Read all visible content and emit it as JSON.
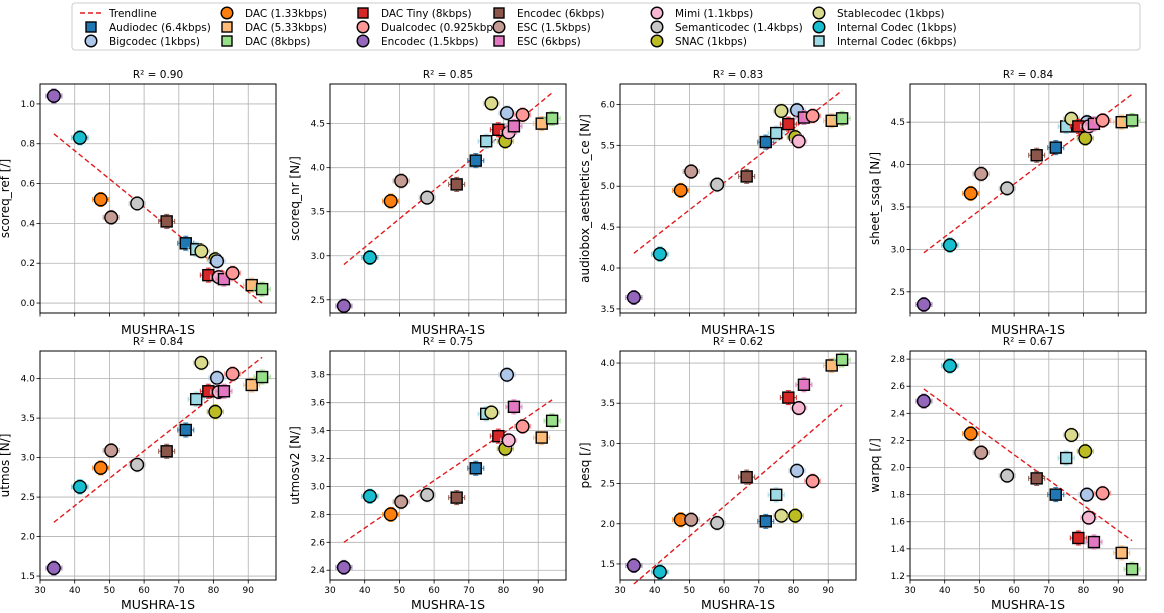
{
  "figure": {
    "legend_position": "top-center",
    "legend_columns": 7
  },
  "legend": [
    {
      "kind": "trendline",
      "label": "Trendline"
    },
    {
      "codec": "audiodec",
      "label": "Audiodec (6.4kbps)"
    },
    {
      "codec": "bigcodec",
      "label": "Bigcodec (1kbps)"
    },
    {
      "codec": "dac133",
      "label": "DAC (1.33kbps)"
    },
    {
      "codec": "dac533",
      "label": "DAC (5.33kbps)"
    },
    {
      "codec": "dac8",
      "label": "DAC (8kbps)"
    },
    {
      "codec": "dactiny",
      "label": "DAC Tiny (8kbps)"
    },
    {
      "codec": "dualcodec",
      "label": "Dualcodec (0.925kbps)"
    },
    {
      "codec": "encodec15",
      "label": "Encodec (1.5kbps)"
    },
    {
      "codec": "encodec6",
      "label": "Encodec (6kbps)"
    },
    {
      "codec": "esc15",
      "label": "ESC (1.5kbps)"
    },
    {
      "codec": "esc6",
      "label": "ESC (6kbps)"
    },
    {
      "codec": "mimi",
      "label": "Mimi (1.1kbps)"
    },
    {
      "codec": "semanticodec",
      "label": "Semanticodec (1.4kbps)"
    },
    {
      "codec": "snac",
      "label": "SNAC (1kbps)"
    },
    {
      "codec": "stablecodec",
      "label": "Stablecodec (1kbps)"
    },
    {
      "codec": "int1",
      "label": "Internal Codec (1kbps)"
    },
    {
      "codec": "int6",
      "label": "Internal Codec (6kbps)"
    }
  ],
  "codecs": {
    "audiodec": {
      "color": "#1f77b4",
      "marker": "square",
      "mushra": 72
    },
    "bigcodec": {
      "color": "#aec7e8",
      "marker": "circle",
      "mushra": 81
    },
    "dac133": {
      "color": "#ff7f0e",
      "marker": "circle",
      "mushra": 47.5
    },
    "dac533": {
      "color": "#ffbb78",
      "marker": "square",
      "mushra": 91
    },
    "dac8": {
      "color": "#98df8a",
      "marker": "square",
      "mushra": 94
    },
    "dactiny": {
      "color": "#d62728",
      "marker": "square",
      "mushra": 78.5
    },
    "dualcodec": {
      "color": "#ff9896",
      "marker": "circle",
      "mushra": 85.5
    },
    "encodec15": {
      "color": "#9467bd",
      "marker": "circle",
      "mushra": 34
    },
    "encodec6": {
      "color": "#8c564b",
      "marker": "square",
      "mushra": 66.5
    },
    "esc15": {
      "color": "#c49c94",
      "marker": "circle",
      "mushra": 50.5
    },
    "esc6": {
      "color": "#e377c2",
      "marker": "square",
      "mushra": 83
    },
    "mimi": {
      "color": "#f7b6d2",
      "marker": "circle",
      "mushra": 81.5
    },
    "semanticodec": {
      "color": "#c7c7c7",
      "marker": "circle",
      "mushra": 58
    },
    "snac": {
      "color": "#bcbd22",
      "marker": "circle",
      "mushra": 80.5
    },
    "stablecodec": {
      "color": "#dbdb8d",
      "marker": "circle",
      "mushra": 76.5
    },
    "int1": {
      "color": "#17becf",
      "marker": "circle",
      "mushra": 41.5
    },
    "int6": {
      "color": "#9edae5",
      "marker": "square",
      "mushra": 75
    }
  },
  "chart_data": [
    {
      "type": "scatter",
      "title": "R² = 0.90",
      "xlabel": "MUSHRA-1S",
      "ylabel": "scoreq_ref [/]",
      "xlim": [
        30,
        98
      ],
      "ylim": [
        -0.05,
        1.1
      ],
      "xticks": [
        30,
        40,
        50,
        60,
        70,
        80,
        90
      ],
      "xticklabels_shown": false,
      "yticks": [
        0.0,
        0.2,
        0.4,
        0.6,
        0.8,
        1.0
      ],
      "trend": [
        [
          34,
          0.85
        ],
        [
          94,
          0.0
        ]
      ],
      "values": {
        "encodec15": 1.04,
        "int1": 0.83,
        "dac133": 0.52,
        "esc15": 0.43,
        "semanticodec": 0.5,
        "encodec6": 0.41,
        "audiodec": 0.3,
        "int6": 0.27,
        "stablecodec": 0.26,
        "snac": 0.22,
        "bigcodec": 0.21,
        "dactiny": 0.14,
        "mimi": 0.13,
        "esc6": 0.12,
        "dualcodec": 0.15,
        "dac533": 0.09,
        "dac8": 0.07
      }
    },
    {
      "type": "scatter",
      "title": "R² = 0.85",
      "xlabel": "MUSHRA-1S",
      "ylabel": "scoreq_nr [N/]",
      "xlim": [
        30,
        98
      ],
      "ylim": [
        2.35,
        4.95
      ],
      "xticks": [
        30,
        40,
        50,
        60,
        70,
        80,
        90
      ],
      "xticklabels_shown": false,
      "yticks": [
        2.5,
        3.0,
        3.5,
        4.0,
        4.5
      ],
      "trend": [
        [
          34,
          2.9
        ],
        [
          94,
          4.85
        ]
      ],
      "values": {
        "encodec15": 2.43,
        "int1": 2.98,
        "dac133": 3.62,
        "esc15": 3.85,
        "semanticodec": 3.66,
        "encodec6": 3.81,
        "audiodec": 4.08,
        "int6": 4.3,
        "stablecodec": 4.73,
        "snac": 4.3,
        "bigcodec": 4.62,
        "dactiny": 4.43,
        "mimi": 4.4,
        "esc6": 4.47,
        "dualcodec": 4.6,
        "dac533": 4.5,
        "dac8": 4.56
      }
    },
    {
      "type": "scatter",
      "title": "R² = 0.83",
      "xlabel": "MUSHRA-1S",
      "ylabel": "audiobox_aesthetics_ce [N/]",
      "xlim": [
        30,
        98
      ],
      "ylim": [
        3.45,
        6.25
      ],
      "xticks": [
        30,
        40,
        50,
        60,
        70,
        80,
        90
      ],
      "xticklabels_shown": false,
      "yticks": [
        3.5,
        4.0,
        4.5,
        5.0,
        5.5,
        6.0
      ],
      "trend": [
        [
          34,
          4.18
        ],
        [
          94,
          6.17
        ]
      ],
      "values": {
        "encodec15": 3.64,
        "int1": 4.17,
        "dac133": 4.95,
        "esc15": 5.18,
        "semanticodec": 5.02,
        "encodec6": 5.12,
        "audiodec": 5.54,
        "int6": 5.65,
        "stablecodec": 5.92,
        "snac": 5.6,
        "bigcodec": 5.93,
        "dactiny": 5.76,
        "mimi": 5.55,
        "esc6": 5.84,
        "dualcodec": 5.86,
        "dac533": 5.8,
        "dac8": 5.83
      }
    },
    {
      "type": "scatter",
      "title": "R² = 0.84",
      "xlabel": "MUSHRA-1S",
      "ylabel": "sheet_ssqa [N/]",
      "xlim": [
        30,
        98
      ],
      "ylim": [
        2.25,
        4.95
      ],
      "xticks": [
        30,
        40,
        50,
        60,
        70,
        80,
        90
      ],
      "xticklabels_shown": false,
      "yticks": [
        2.5,
        3.0,
        3.5,
        4.0,
        4.5
      ],
      "trend": [
        [
          34,
          2.96
        ],
        [
          94,
          4.83
        ]
      ],
      "values": {
        "encodec15": 2.35,
        "int1": 3.05,
        "dac133": 3.66,
        "esc15": 3.89,
        "semanticodec": 3.72,
        "encodec6": 4.11,
        "audiodec": 4.2,
        "int6": 4.45,
        "stablecodec": 4.54,
        "snac": 4.31,
        "bigcodec": 4.5,
        "dactiny": 4.45,
        "mimi": 4.45,
        "esc6": 4.48,
        "dualcodec": 4.52,
        "dac533": 4.5,
        "dac8": 4.52
      }
    },
    {
      "type": "scatter",
      "title": "R² = 0.84",
      "xlabel": "MUSHRA-1S",
      "ylabel": "utmos [N/]",
      "xlim": [
        30,
        98
      ],
      "ylim": [
        1.45,
        4.35
      ],
      "xticks": [
        30,
        40,
        50,
        60,
        70,
        80,
        90
      ],
      "xticklabels_shown": true,
      "yticks": [
        1.5,
        2.0,
        2.5,
        3.0,
        3.5,
        4.0
      ],
      "trend": [
        [
          34,
          2.18
        ],
        [
          94,
          4.27
        ]
      ],
      "values": {
        "encodec15": 1.6,
        "int1": 2.63,
        "dac133": 2.87,
        "esc15": 3.09,
        "semanticodec": 2.91,
        "encodec6": 3.08,
        "audiodec": 3.35,
        "int6": 3.74,
        "stablecodec": 4.2,
        "snac": 3.58,
        "bigcodec": 4.01,
        "dactiny": 3.84,
        "mimi": 3.83,
        "esc6": 3.84,
        "dualcodec": 4.06,
        "dac533": 3.92,
        "dac8": 4.02
      }
    },
    {
      "type": "scatter",
      "title": "R² = 0.75",
      "xlabel": "MUSHRA-1S",
      "ylabel": "utmosv2 [N/]",
      "xlim": [
        30,
        98
      ],
      "ylim": [
        2.33,
        3.97
      ],
      "xticks": [
        30,
        40,
        50,
        60,
        70,
        80,
        90
      ],
      "xticklabels_shown": true,
      "yticks": [
        2.4,
        2.6,
        2.8,
        3.0,
        3.2,
        3.4,
        3.6,
        3.8
      ],
      "trend": [
        [
          34,
          2.6
        ],
        [
          94,
          3.62
        ]
      ],
      "values": {
        "encodec15": 2.42,
        "int1": 2.93,
        "dac133": 2.8,
        "esc15": 2.89,
        "semanticodec": 2.94,
        "encodec6": 2.92,
        "audiodec": 3.13,
        "int6": 3.52,
        "stablecodec": 3.53,
        "snac": 3.27,
        "bigcodec": 3.8,
        "dactiny": 3.36,
        "mimi": 3.33,
        "esc6": 3.57,
        "dualcodec": 3.43,
        "dac533": 3.35,
        "dac8": 3.47
      }
    },
    {
      "type": "scatter",
      "title": "R² = 0.62",
      "xlabel": "MUSHRA-1S",
      "ylabel": "pesq [/]",
      "xlim": [
        30,
        98
      ],
      "ylim": [
        1.3,
        4.15
      ],
      "xticks": [
        30,
        40,
        50,
        60,
        70,
        80,
        90
      ],
      "xticklabels_shown": true,
      "yticks": [
        1.5,
        2.0,
        2.5,
        3.0,
        3.5,
        4.0
      ],
      "trend": [
        [
          34,
          1.25
        ],
        [
          94,
          3.48
        ]
      ],
      "values": {
        "encodec15": 1.48,
        "int1": 1.4,
        "dac133": 2.05,
        "esc15": 2.05,
        "semanticodec": 2.01,
        "encodec6": 2.58,
        "audiodec": 2.03,
        "int6": 2.36,
        "stablecodec": 2.1,
        "snac": 2.1,
        "bigcodec": 2.66,
        "dactiny": 3.57,
        "mimi": 3.44,
        "esc6": 3.73,
        "dualcodec": 2.53,
        "dac533": 3.97,
        "dac8": 4.04
      }
    },
    {
      "type": "scatter",
      "title": "R² = 0.67",
      "xlabel": "MUSHRA-1S",
      "ylabel": "warpq [/]",
      "xlim": [
        30,
        98
      ],
      "ylim": [
        1.17,
        2.86
      ],
      "xticks": [
        30,
        40,
        50,
        60,
        70,
        80,
        90
      ],
      "xticklabels_shown": true,
      "yticks": [
        1.2,
        1.4,
        1.6,
        1.8,
        2.0,
        2.2,
        2.4,
        2.6,
        2.8
      ],
      "trend": [
        [
          34,
          2.58
        ],
        [
          94,
          1.46
        ]
      ],
      "values": {
        "encodec15": 2.49,
        "int1": 2.75,
        "dac133": 2.25,
        "esc15": 2.11,
        "semanticodec": 1.94,
        "encodec6": 1.92,
        "audiodec": 1.8,
        "int6": 2.07,
        "stablecodec": 2.24,
        "snac": 2.12,
        "bigcodec": 1.8,
        "dactiny": 1.48,
        "mimi": 1.63,
        "esc6": 1.45,
        "dualcodec": 1.81,
        "dac533": 1.37,
        "dac8": 1.25
      }
    }
  ]
}
